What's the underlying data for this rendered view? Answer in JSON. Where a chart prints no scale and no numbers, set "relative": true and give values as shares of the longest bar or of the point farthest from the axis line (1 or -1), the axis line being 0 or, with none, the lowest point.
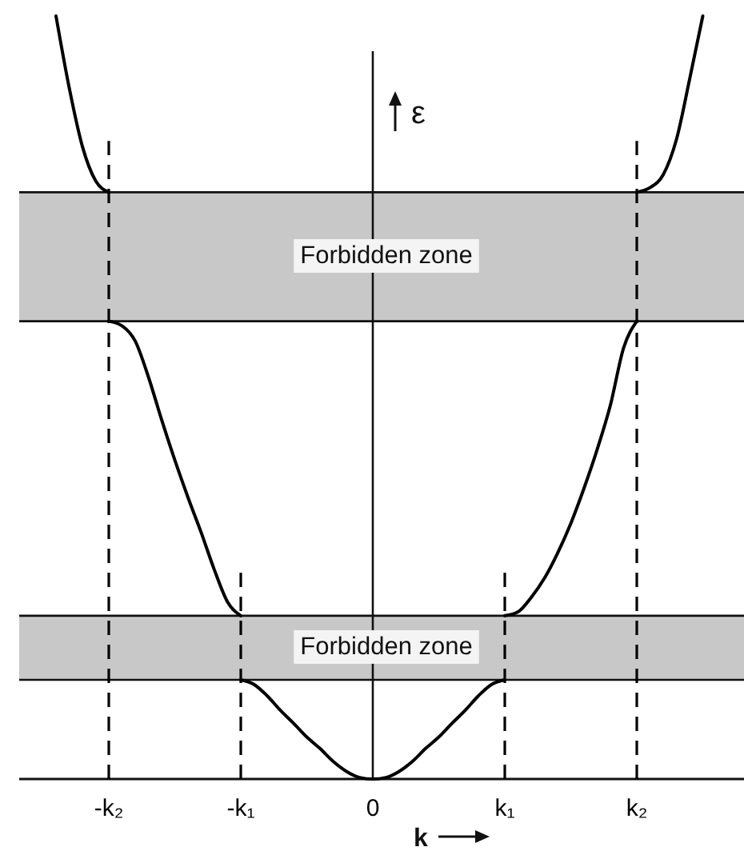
{
  "chart_data": {
    "type": "line",
    "relative": true,
    "xlabel": "k",
    "ylabel": "ε",
    "categories": [
      null,
      null,
      null,
      null,
      "-k₂",
      null,
      null,
      null,
      null,
      null,
      null,
      null,
      null,
      null,
      "-k₁",
      null,
      null,
      null,
      null,
      null,
      null,
      null,
      null,
      null,
      "0",
      null,
      null,
      null,
      null,
      null,
      null,
      null,
      null,
      null,
      "k₁",
      null,
      null,
      null,
      null,
      null,
      null,
      null,
      null,
      null,
      "k₂",
      null,
      null,
      null,
      null,
      null
    ],
    "bands": [
      {
        "axis": "y",
        "from": 0.6,
        "to": 0.769,
        "label": "Forbidden zone",
        "color": "#c8c8c8"
      },
      {
        "axis": "y",
        "from": 0.13,
        "to": 0.214,
        "label": "Forbidden zone",
        "color": "#c8c8c8"
      }
    ],
    "ref_lines": [
      {
        "axis": "x",
        "value": "-k₂",
        "color": "#000000",
        "line_style": "dashed"
      },
      {
        "axis": "x",
        "value": "-k₁",
        "color": "#000000",
        "line_style": "dashed"
      },
      {
        "axis": "x",
        "value": "k₁",
        "color": "#000000",
        "line_style": "dashed"
      },
      {
        "axis": "x",
        "value": "k₂",
        "color": "#000000",
        "line_style": "dashed"
      }
    ],
    "series": [
      {
        "color": "#000000",
        "values": [
          1,
          0.906,
          0.829,
          0.784,
          0.769,
          null,
          null,
          null,
          null,
          null,
          null,
          null,
          null,
          null,
          null,
          null,
          null,
          null,
          null,
          null,
          null,
          null,
          null,
          null,
          null,
          null,
          null,
          null,
          null,
          null,
          null,
          null,
          null,
          null,
          null,
          null,
          null,
          null,
          null,
          null,
          null,
          null,
          null,
          null,
          null,
          null,
          null,
          null,
          null,
          null
        ]
      },
      {
        "color": "#000000",
        "values": [
          null,
          null,
          null,
          null,
          0.6,
          0.594,
          0.574,
          0.527,
          0.471,
          0.418,
          0.369,
          0.323,
          0.274,
          0.232,
          0.214,
          null,
          null,
          null,
          null,
          null,
          null,
          null,
          null,
          null,
          null,
          null,
          null,
          null,
          null,
          null,
          null,
          null,
          null,
          null,
          null,
          null,
          null,
          null,
          null,
          null,
          null,
          null,
          null,
          null,
          null,
          null,
          null,
          null,
          null,
          null
        ]
      },
      {
        "color": "#000000",
        "values": [
          null,
          null,
          null,
          null,
          null,
          null,
          null,
          null,
          null,
          null,
          null,
          null,
          null,
          null,
          0.13,
          0.124,
          0.109,
          0.09,
          0.073,
          0.055,
          0.04,
          0.023,
          0.01,
          0.002,
          0,
          0.002,
          0.01,
          0.023,
          0.04,
          0.055,
          0.073,
          0.09,
          0.109,
          0.124,
          0.13,
          null,
          null,
          null,
          null,
          null,
          null,
          null,
          null,
          null,
          null,
          null,
          null,
          null,
          null,
          null
        ]
      },
      {
        "color": "#000000",
        "values": [
          null,
          null,
          null,
          null,
          null,
          null,
          null,
          null,
          null,
          null,
          null,
          null,
          null,
          null,
          null,
          null,
          null,
          null,
          null,
          null,
          null,
          null,
          null,
          null,
          null,
          null,
          null,
          null,
          null,
          null,
          null,
          null,
          null,
          null,
          0.214,
          0.219,
          0.238,
          0.263,
          0.296,
          0.335,
          0.381,
          0.432,
          0.49,
          0.565,
          0.6,
          null,
          null,
          null,
          null,
          null
        ]
      },
      {
        "color": "#000000",
        "values": [
          null,
          null,
          null,
          null,
          null,
          null,
          null,
          null,
          null,
          null,
          null,
          null,
          null,
          null,
          null,
          null,
          null,
          null,
          null,
          null,
          null,
          null,
          null,
          null,
          null,
          null,
          null,
          null,
          null,
          null,
          null,
          null,
          null,
          null,
          null,
          null,
          null,
          null,
          null,
          null,
          null,
          null,
          null,
          null,
          0.769,
          0.775,
          0.792,
          0.838,
          0.917,
          1
        ]
      }
    ]
  }
}
